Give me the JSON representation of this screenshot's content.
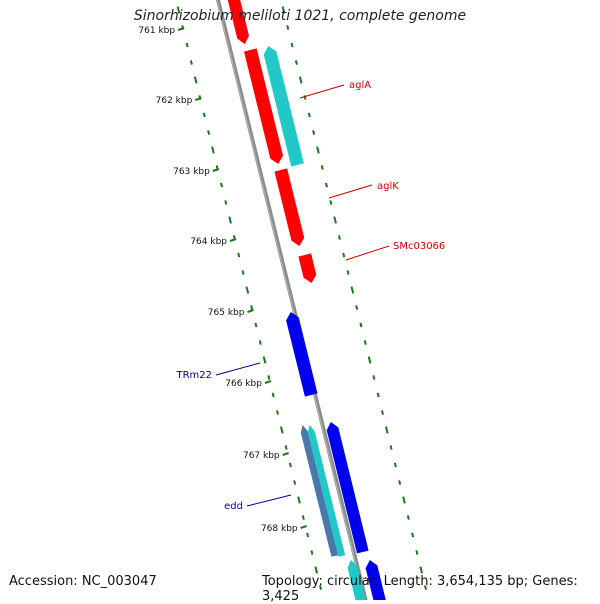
{
  "title": "Sinorhizobium meliloti 1021, complete genome",
  "footer": {
    "accession": "Accession: NC_003047",
    "summary": "Topology: circular; Length: 3,654,135 bp; Genes: 3,425"
  },
  "scale": {
    "unit": "kbp",
    "tick_labels": [
      "761 kbp",
      "762 kbp",
      "763 kbp",
      "764 kbp",
      "765 kbp",
      "766 kbp",
      "767 kbp",
      "768 kbp"
    ]
  },
  "colors": {
    "backbone": "#8c8c8c",
    "forward_gene": "#ff0000",
    "reverse_gene": "#0000ee",
    "cds_cyan": "#22c8c8",
    "feature_slate": "#4a78a8",
    "tick_green": "#1a7a1a",
    "label_red": "#cc0000",
    "label_blue": "#000099"
  },
  "gene_labels": [
    {
      "name": "aglA",
      "strand": "forward"
    },
    {
      "name": "aglK",
      "strand": "forward"
    },
    {
      "name": "SMc03066",
      "strand": "forward"
    },
    {
      "name": "TRm22",
      "strand": "reverse"
    },
    {
      "name": "edd",
      "strand": "reverse"
    }
  ]
}
